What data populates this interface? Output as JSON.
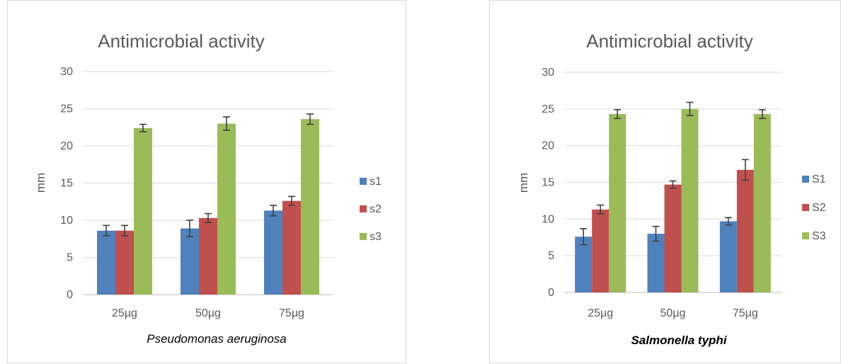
{
  "charts": [
    {
      "id": "left",
      "type": "bar",
      "title": "Antimicrobial activity",
      "xlabel": "Pseudomonas aeruginosa",
      "xlabel_bold": false,
      "ylabel": "mm",
      "ylim": [
        0,
        30
      ],
      "yticks": [
        0,
        5,
        10,
        15,
        20,
        25,
        30
      ],
      "categories": [
        "25µg",
        "50µg",
        "75µg"
      ],
      "legend_position": "right",
      "grid": true,
      "series": [
        {
          "name": "s1",
          "color": "#4f81bd",
          "values": [
            8.6,
            8.9,
            11.3
          ],
          "errors": [
            0.7,
            1.1,
            0.7
          ]
        },
        {
          "name": "s2",
          "color": "#c0504d",
          "values": [
            8.6,
            10.3,
            12.6
          ],
          "errors": [
            0.7,
            0.6,
            0.6
          ]
        },
        {
          "name": "s3",
          "color": "#9bbb59",
          "values": [
            22.4,
            23.0,
            23.6
          ],
          "errors": [
            0.5,
            0.9,
            0.7
          ]
        }
      ]
    },
    {
      "id": "right",
      "type": "bar",
      "title": "Antimicrobial activity",
      "xlabel": "Salmonella typhi",
      "xlabel_bold": true,
      "ylabel": "mm",
      "ylim": [
        0,
        30
      ],
      "yticks": [
        0,
        5,
        10,
        15,
        20,
        25,
        30
      ],
      "categories": [
        "25µg",
        "50µg",
        "75µg"
      ],
      "legend_position": "right",
      "grid": true,
      "series": [
        {
          "name": "S1",
          "color": "#4f81bd",
          "values": [
            7.6,
            8.0,
            9.7
          ],
          "errors": [
            1.1,
            1.0,
            0.5
          ]
        },
        {
          "name": "S2",
          "color": "#c0504d",
          "values": [
            11.3,
            14.7,
            16.7
          ],
          "errors": [
            0.6,
            0.5,
            1.4
          ]
        },
        {
          "name": "S3",
          "color": "#9bbb59",
          "values": [
            24.3,
            25.0,
            24.3
          ],
          "errors": [
            0.6,
            0.9,
            0.6
          ]
        }
      ]
    }
  ]
}
